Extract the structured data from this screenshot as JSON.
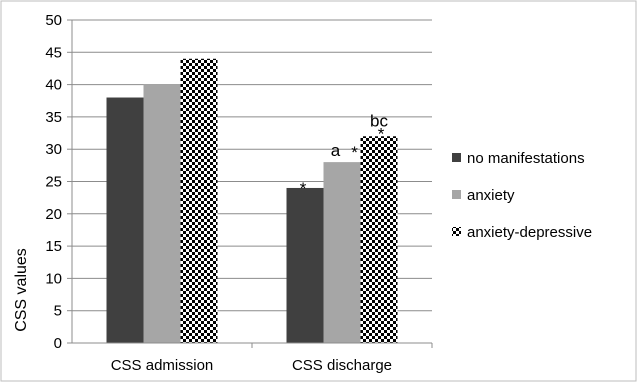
{
  "chart_data": {
    "type": "bar",
    "categories": [
      "CSS admission",
      "CSS discharge"
    ],
    "series": [
      {
        "name": "no manifestations",
        "values": [
          38,
          24
        ],
        "color": "#404040",
        "pattern": "solid"
      },
      {
        "name": "anxiety",
        "values": [
          40,
          28
        ],
        "color": "#a6a6a6",
        "pattern": "solid"
      },
      {
        "name": "anxiety-depressive",
        "values": [
          44,
          32
        ],
        "color": "#000000",
        "pattern": "checkerboard"
      }
    ],
    "ylabel": "CSS values",
    "xlabel": "",
    "ylim": [
      0,
      50
    ],
    "yticks": [
      0,
      5,
      10,
      15,
      20,
      25,
      30,
      35,
      40,
      45,
      50
    ],
    "grid": true,
    "legend_position": "right",
    "annotations": [
      {
        "category": "CSS discharge",
        "series": "no manifestations",
        "text": "*"
      },
      {
        "category": "CSS discharge",
        "series": "anxiety",
        "text": "a"
      },
      {
        "category": "CSS discharge",
        "series": "anxiety",
        "text": "*"
      },
      {
        "category": "CSS discharge",
        "series": "anxiety-depressive",
        "text": "bc"
      },
      {
        "category": "CSS discharge",
        "series": "anxiety-depressive",
        "text": "*"
      }
    ]
  }
}
